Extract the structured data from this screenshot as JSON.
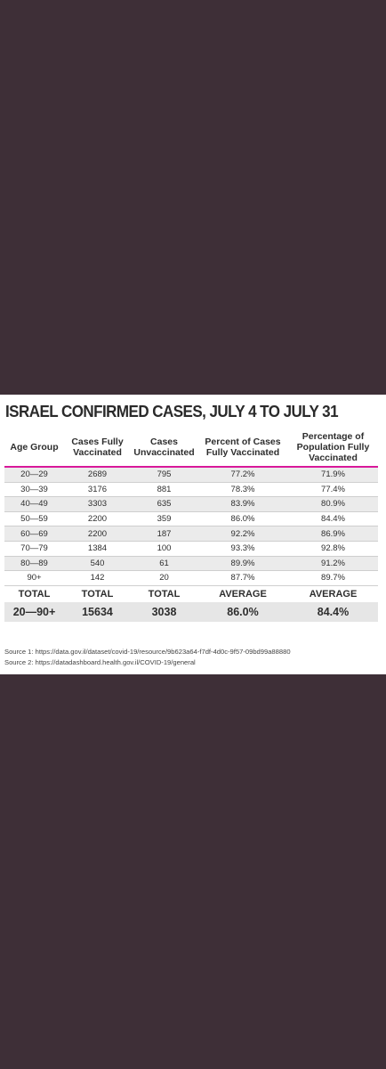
{
  "title": "ISRAEL CONFIRMED CASES, JULY 4 TO JULY 31",
  "headers": [
    "Age Group",
    "Cases Fully Vaccinated",
    "Cases Unvaccinated",
    "Percent of Cases Fully Vaccinated",
    "Percentage of Population Fully Vaccinated"
  ],
  "rows": [
    [
      "20—29",
      "2689",
      "795",
      "77.2%",
      "71.9%"
    ],
    [
      "30—39",
      "3176",
      "881",
      "78.3%",
      "77.4%"
    ],
    [
      "40—49",
      "3303",
      "635",
      "83.9%",
      "80.9%"
    ],
    [
      "50—59",
      "2200",
      "359",
      "86.0%",
      "84.4%"
    ],
    [
      "60—69",
      "2200",
      "187",
      "92.2%",
      "86.9%"
    ],
    [
      "70—79",
      "1384",
      "100",
      "93.3%",
      "92.8%"
    ],
    [
      "80—89",
      "540",
      "61",
      "89.9%",
      "91.2%"
    ],
    [
      "90+",
      "142",
      "20",
      "87.7%",
      "89.7%"
    ]
  ],
  "summary_labels": [
    "TOTAL",
    "TOTAL",
    "TOTAL",
    "AVERAGE",
    "AVERAGE"
  ],
  "summary_values": [
    "20—90+",
    "15634",
    "3038",
    "86.0%",
    "84.4%"
  ],
  "sources": [
    "Source 1: https://data.gov.il/dataset/covid-19/resource/9b623a64-f7df-4d0c-9f57-09bd99a88880",
    "Source 2: https://datadashboard.health.gov.il/COVID-19/general"
  ],
  "colors": {
    "background": "#3e2f37",
    "header_rule": "#d8189a",
    "row_shade": "#ebebeb"
  }
}
